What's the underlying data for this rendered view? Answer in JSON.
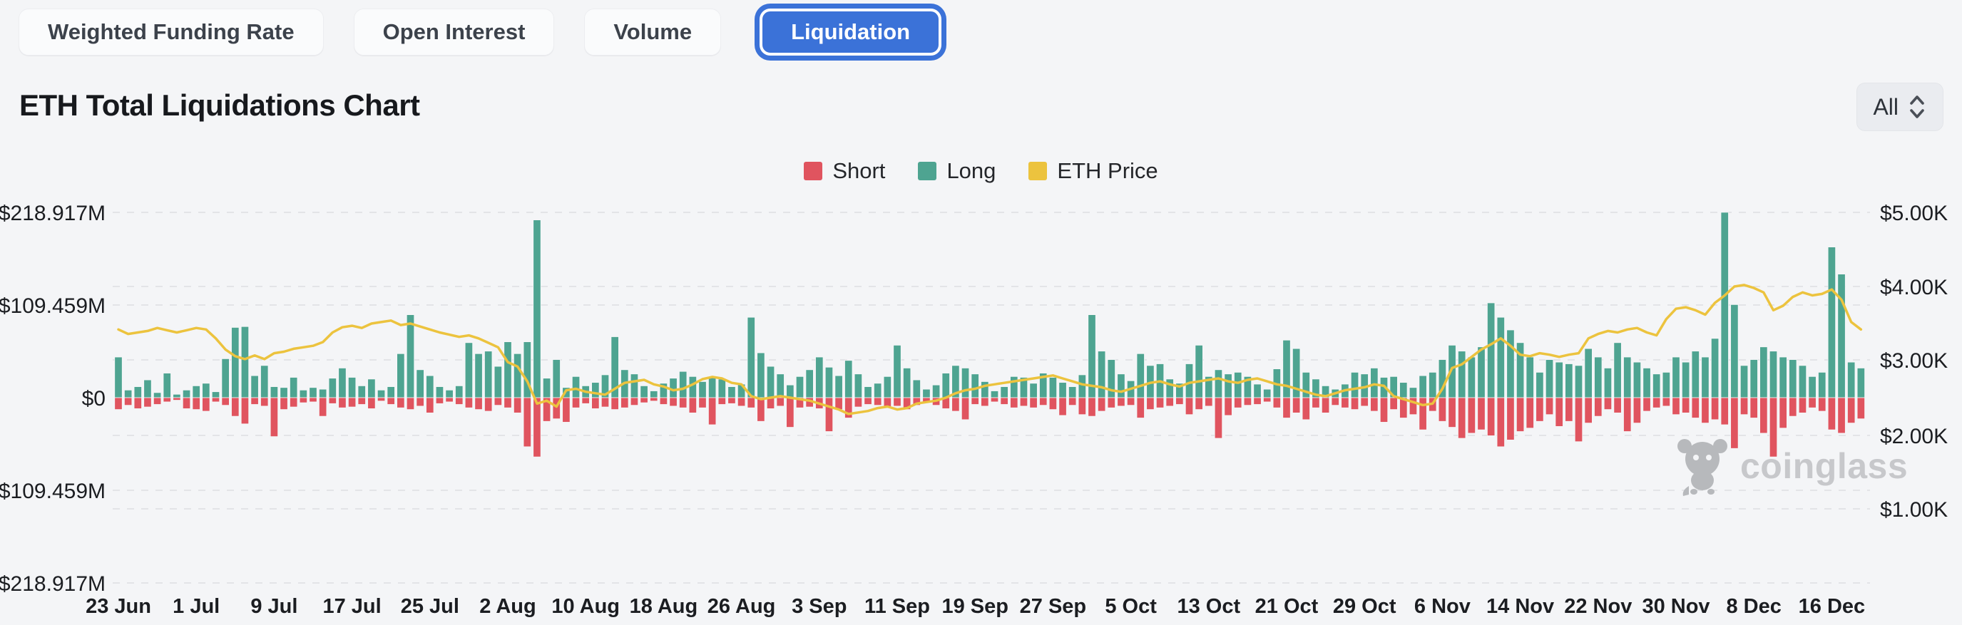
{
  "tabs": {
    "items": [
      {
        "label": "Weighted Funding Rate",
        "active": false
      },
      {
        "label": "Open Interest",
        "active": false
      },
      {
        "label": "Volume",
        "active": false
      },
      {
        "label": "Liquidation",
        "active": true
      }
    ]
  },
  "header": {
    "title": "ETH Total Liquidations Chart",
    "range_selector": {
      "value": "All"
    }
  },
  "legend": [
    {
      "label": "Short",
      "color": "#e0545f"
    },
    {
      "label": "Long",
      "color": "#4ea491"
    },
    {
      "label": "ETH Price",
      "color": "#ecc33e"
    }
  ],
  "watermark": {
    "label": "coinglass"
  },
  "colors": {
    "short": "#e0545f",
    "long": "#4ea491",
    "price": "#ecc33e",
    "grid": "#e3e4e7",
    "axis_text": "#1b1d21",
    "active_tab": "#3b72d8",
    "background": "#f4f5f7"
  },
  "chart_data": {
    "type": "bar",
    "title": "ETH Total Liquidations Chart",
    "grid": "dashed-horizontal",
    "legend_position": "top-center",
    "days": 180,
    "x_tick_every_days": 8,
    "x_tick_labels": [
      "23 Jun",
      "1 Jul",
      "9 Jul",
      "17 Jul",
      "25 Jul",
      "2 Aug",
      "10 Aug",
      "18 Aug",
      "26 Aug",
      "3 Sep",
      "11 Sep",
      "19 Sep",
      "27 Sep",
      "5 Oct",
      "13 Oct",
      "21 Oct",
      "29 Oct",
      "6 Nov",
      "14 Nov",
      "22 Nov",
      "30 Nov",
      "8 Dec",
      "16 Dec"
    ],
    "left_axis": {
      "tick_labels": [
        "$218.917M",
        "$109.459M",
        "$0",
        "$109.459M",
        "$218.917M"
      ],
      "max_abs_millions": 218.917,
      "unit": "$M"
    },
    "right_axis": {
      "tick_labels": [
        "$5.00K",
        "$4.00K",
        "$3.00K",
        "$2.00K",
        "$1.00K"
      ],
      "min_thousands": 0,
      "max_thousands": 5,
      "unit": "$K"
    },
    "series": [
      {
        "name": "Short",
        "color": "#e0545f",
        "unit": "$M",
        "direction": "down",
        "values": [
          14,
          9,
          13,
          11,
          8,
          5,
          3,
          13,
          14,
          16,
          5,
          9,
          22,
          31,
          8,
          10,
          46,
          14,
          11,
          6,
          5,
          22,
          7,
          12,
          11,
          8,
          13,
          4,
          8,
          12,
          14,
          10,
          18,
          7,
          5,
          8,
          12,
          14,
          16,
          9,
          12,
          18,
          58,
          70,
          28,
          25,
          29,
          12,
          7,
          13,
          11,
          14,
          12,
          9,
          6,
          4,
          8,
          10,
          12,
          18,
          12,
          32,
          8,
          7,
          10,
          12,
          28,
          13,
          10,
          35,
          12,
          11,
          13,
          40,
          14,
          24,
          11,
          8,
          9,
          12,
          10,
          14,
          9,
          6,
          9,
          13,
          16,
          26,
          8,
          10,
          5,
          8,
          12,
          10,
          12,
          9,
          14,
          21,
          9,
          20,
          22,
          16,
          12,
          10,
          9,
          24,
          14,
          12,
          10,
          8,
          20,
          14,
          10,
          48,
          21,
          12,
          9,
          8,
          5,
          12,
          24,
          18,
          26,
          12,
          18,
          9,
          12,
          14,
          10,
          16,
          29,
          14,
          24,
          20,
          38,
          16,
          28,
          35,
          48,
          42,
          38,
          45,
          58,
          50,
          40,
          36,
          28,
          20,
          34,
          28,
          52,
          30,
          22,
          14,
          18,
          40,
          30,
          16,
          12,
          10,
          20,
          18,
          24,
          30,
          26,
          32,
          60,
          20,
          24,
          42,
          70,
          36,
          22,
          18,
          12,
          16,
          38,
          42,
          30,
          25
        ]
      },
      {
        "name": "Long",
        "color": "#4ea491",
        "unit": "$M",
        "direction": "up",
        "values": [
          48,
          9,
          13,
          21,
          6,
          29,
          4,
          9,
          14,
          17,
          7,
          46,
          83,
          84,
          26,
          38,
          13,
          12,
          24,
          9,
          12,
          10,
          23,
          35,
          24,
          14,
          22,
          9,
          13,
          52,
          98,
          33,
          26,
          13,
          9,
          14,
          65,
          52,
          55,
          37,
          66,
          52,
          66,
          210,
          23,
          45,
          12,
          25,
          14,
          18,
          27,
          72,
          33,
          28,
          14,
          8,
          17,
          23,
          31,
          25,
          19,
          24,
          22,
          13,
          16,
          95,
          53,
          37,
          28,
          15,
          25,
          33,
          48,
          36,
          26,
          44,
          28,
          13,
          17,
          25,
          62,
          35,
          21,
          10,
          15,
          29,
          38,
          35,
          28,
          19,
          8,
          13,
          25,
          24,
          17,
          29,
          24,
          18,
          13,
          27,
          98,
          55,
          45,
          28,
          20,
          52,
          38,
          40,
          22,
          17,
          40,
          62,
          25,
          33,
          28,
          30,
          25,
          16,
          10,
          34,
          68,
          58,
          30,
          22,
          14,
          10,
          16,
          30,
          28,
          35,
          24,
          25,
          18,
          12,
          26,
          30,
          45,
          62,
          55,
          48,
          60,
          112,
          95,
          80,
          65,
          48,
          30,
          45,
          42,
          40,
          38,
          58,
          48,
          35,
          65,
          48,
          42,
          35,
          28,
          30,
          48,
          42,
          55,
          48,
          70,
          219,
          110,
          38,
          45,
          60,
          55,
          48,
          45,
          38,
          25,
          30,
          178,
          146,
          42,
          35
        ]
      },
      {
        "name": "ETH Price",
        "color": "#ecc33e",
        "unit": "$K",
        "axis": "right",
        "values": [
          3.42,
          3.36,
          3.38,
          3.4,
          3.44,
          3.41,
          3.38,
          3.41,
          3.44,
          3.42,
          3.3,
          3.15,
          3.06,
          3.02,
          3.07,
          3.02,
          3.1,
          3.12,
          3.16,
          3.18,
          3.2,
          3.25,
          3.38,
          3.45,
          3.47,
          3.44,
          3.5,
          3.52,
          3.54,
          3.48,
          3.5,
          3.46,
          3.42,
          3.38,
          3.35,
          3.32,
          3.34,
          3.3,
          3.24,
          3.18,
          2.98,
          2.92,
          2.72,
          2.42,
          2.46,
          2.38,
          2.6,
          2.62,
          2.58,
          2.56,
          2.54,
          2.62,
          2.7,
          2.72,
          2.74,
          2.68,
          2.65,
          2.6,
          2.62,
          2.68,
          2.75,
          2.78,
          2.76,
          2.7,
          2.68,
          2.52,
          2.48,
          2.5,
          2.52,
          2.5,
          2.48,
          2.46,
          2.42,
          2.38,
          2.34,
          2.28,
          2.3,
          2.32,
          2.36,
          2.38,
          2.34,
          2.36,
          2.42,
          2.44,
          2.46,
          2.5,
          2.56,
          2.6,
          2.62,
          2.66,
          2.68,
          2.7,
          2.72,
          2.74,
          2.76,
          2.78,
          2.8,
          2.76,
          2.72,
          2.68,
          2.66,
          2.64,
          2.6,
          2.58,
          2.62,
          2.66,
          2.7,
          2.72,
          2.68,
          2.65,
          2.7,
          2.72,
          2.74,
          2.76,
          2.72,
          2.7,
          2.74,
          2.76,
          2.72,
          2.68,
          2.66,
          2.62,
          2.58,
          2.54,
          2.52,
          2.56,
          2.6,
          2.62,
          2.64,
          2.68,
          2.66,
          2.52,
          2.48,
          2.44,
          2.4,
          2.42,
          2.62,
          2.9,
          2.95,
          3.05,
          3.15,
          3.22,
          3.3,
          3.2,
          3.08,
          3.06,
          3.1,
          3.08,
          3.05,
          3.08,
          3.1,
          3.3,
          3.36,
          3.4,
          3.38,
          3.42,
          3.44,
          3.38,
          3.34,
          3.56,
          3.7,
          3.72,
          3.68,
          3.62,
          3.78,
          3.88,
          4.0,
          4.02,
          3.98,
          3.92,
          3.68,
          3.74,
          3.86,
          3.92,
          3.88,
          3.9,
          3.96,
          3.82,
          3.52,
          3.42
        ]
      }
    ]
  }
}
